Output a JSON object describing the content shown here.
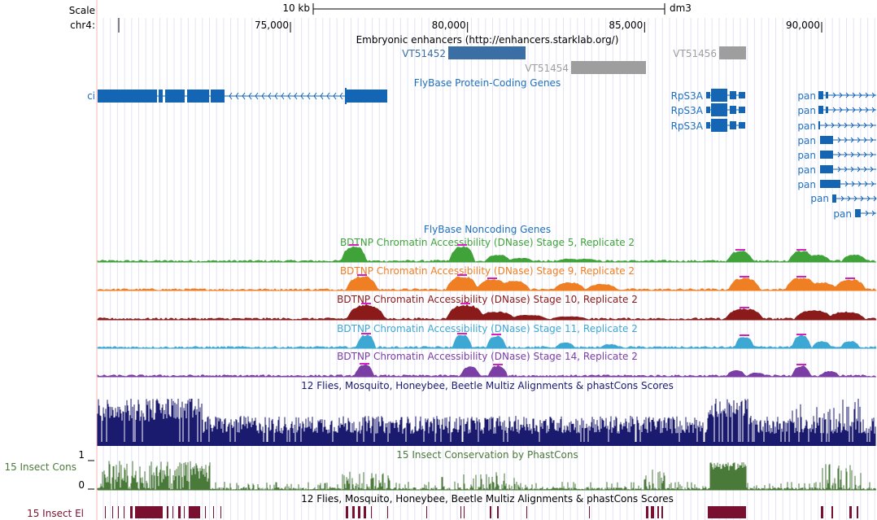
{
  "header": {
    "scale_label": "Scale",
    "chrom_label": "chr4:",
    "scale_bar_text": "10 kb",
    "assembly": "dm3"
  },
  "ruler": {
    "ticks": [
      {
        "label": "75,000",
        "pos": 75000
      },
      {
        "label": "80,000",
        "pos": 80000
      },
      {
        "label": "85,000",
        "pos": 85000
      },
      {
        "label": "90,000",
        "pos": 90000
      }
    ]
  },
  "enhancers": {
    "title": "Embryonic enhancers (http://enhancers.starklab.org/)",
    "items": [
      {
        "name": "VT51452",
        "color": "#3a6ea5"
      },
      {
        "name": "VT51454",
        "color": "#9e9e9e"
      },
      {
        "name": "VT51456",
        "color": "#9e9e9e"
      }
    ]
  },
  "genes": {
    "title": "FlyBase Protein-Coding Genes",
    "items": [
      {
        "name": "ci"
      },
      {
        "name": "RpS3A"
      },
      {
        "name": "RpS3A"
      },
      {
        "name": "RpS3A"
      },
      {
        "name": "pan"
      },
      {
        "name": "pan"
      },
      {
        "name": "pan"
      },
      {
        "name": "pan"
      },
      {
        "name": "pan"
      },
      {
        "name": "pan"
      },
      {
        "name": "pan"
      },
      {
        "name": "pan"
      },
      {
        "name": "pan"
      }
    ]
  },
  "noncoding": {
    "title": "FlyBase Noncoding Genes"
  },
  "dnase": [
    {
      "title": "BDTNP Chromatin Accessibility (DNase) Stage 5, Replicate 2",
      "color": "#3fa33a"
    },
    {
      "title": "BDTNP Chromatin Accessibility (DNase) Stage 9, Replicate 2",
      "color": "#f07f23"
    },
    {
      "title": "BDTNP Chromatin Accessibility (DNase) Stage 10, Replicate 2",
      "color": "#8b1a1a"
    },
    {
      "title": "BDTNP Chromatin Accessibility (DNase) Stage 11, Replicate 2",
      "color": "#3ea8d4"
    },
    {
      "title": "BDTNP Chromatin Accessibility (DNase) Stage 14, Replicate 2",
      "color": "#7a3ea5"
    }
  ],
  "multiz": {
    "title": "12 Flies, Mosquito, Honeybee, Beetle Multiz Alignments & phastCons Scores",
    "color": "#1a1a6e"
  },
  "cons": {
    "title": "15 Insect Conservation by PhastCons",
    "side_label": "15 Insect Cons",
    "y_max": "1",
    "y_min": "0",
    "color": "#4a7a3a"
  },
  "elements": {
    "title": "12 Flies, Mosquito, Honeybee, Beetle Multiz Alignments & phastCons Scores",
    "side_label": "15 Insect El",
    "color": "#7a1030"
  }
}
